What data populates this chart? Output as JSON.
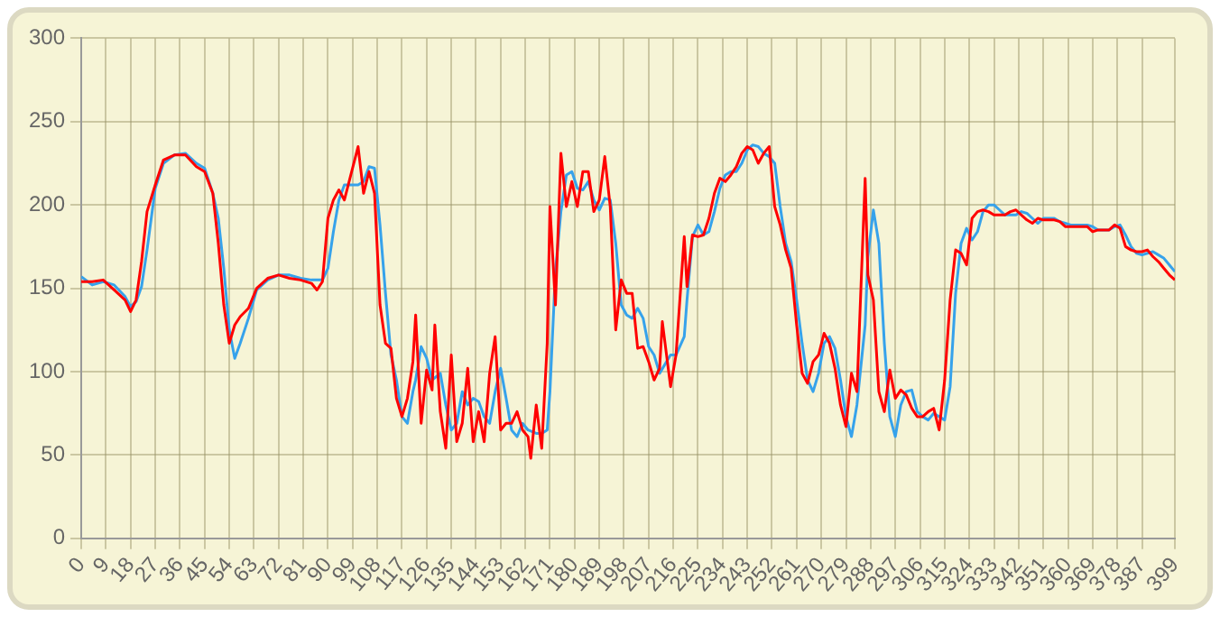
{
  "chart_data": {
    "type": "line",
    "ylim": [
      0,
      300
    ],
    "yticks": [
      0,
      50,
      100,
      150,
      200,
      250,
      300
    ],
    "xlim": [
      0,
      399
    ],
    "xticks": [
      0,
      9,
      18,
      27,
      36,
      45,
      54,
      63,
      72,
      81,
      90,
      99,
      108,
      117,
      126,
      135,
      144,
      153,
      162,
      171,
      180,
      189,
      198,
      207,
      216,
      225,
      234,
      243,
      252,
      261,
      270,
      279,
      288,
      297,
      306,
      315,
      324,
      333,
      342,
      351,
      360,
      369,
      378,
      387,
      399
    ],
    "grid": true,
    "legend": false,
    "marker": "none",
    "line_style": "solid",
    "series": [
      {
        "color": "#ff0000",
        "x": [
          0,
          4,
          8,
          12,
          16,
          18,
          20,
          22,
          24,
          27,
          30,
          34,
          38,
          42,
          45,
          48,
          50,
          52,
          54,
          56,
          58,
          61,
          64,
          68,
          72,
          76,
          80,
          84,
          86,
          88,
          90,
          92,
          94,
          96,
          101,
          103,
          105,
          107,
          109,
          111,
          113,
          115,
          117,
          119,
          121,
          122,
          124,
          126,
          128,
          129,
          131,
          133,
          135,
          137,
          139,
          141,
          143,
          145,
          147,
          149,
          151,
          153,
          155,
          157,
          159,
          161,
          163,
          164,
          166,
          168,
          170,
          171,
          173,
          175,
          177,
          179,
          181,
          183,
          185,
          187,
          189,
          191,
          193,
          195,
          197,
          199,
          201,
          203,
          205,
          207,
          209,
          211,
          212,
          215,
          217,
          220,
          221,
          223,
          225,
          227,
          229,
          231,
          233,
          235,
          237,
          239,
          241,
          243,
          245,
          247,
          249,
          251,
          253,
          255,
          257,
          259,
          261,
          263,
          265,
          267,
          269,
          271,
          273,
          275,
          277,
          279,
          281,
          283,
          286,
          287,
          289,
          291,
          293,
          295,
          297,
          299,
          301,
          303,
          305,
          307,
          309,
          311,
          313,
          315,
          317,
          319,
          321,
          323,
          325,
          327,
          329,
          331,
          333,
          335,
          337,
          339,
          341,
          343,
          345,
          347,
          349,
          351,
          353,
          355,
          357,
          359,
          361,
          363,
          365,
          367,
          369,
          371,
          373,
          375,
          377,
          379,
          381,
          383,
          385,
          387,
          389,
          391,
          393,
          395,
          397,
          399
        ],
        "values": [
          154,
          154,
          155,
          149,
          143,
          136,
          143,
          166,
          196,
          212,
          227,
          230,
          230,
          223,
          220,
          207,
          177,
          140,
          117,
          128,
          133,
          138,
          150,
          156,
          158,
          156,
          155,
          153,
          149,
          154,
          192,
          203,
          209,
          203,
          235,
          207,
          220,
          207,
          140,
          117,
          114,
          84,
          73,
          84,
          106,
          134,
          69,
          101,
          89,
          128,
          76,
          54,
          110,
          58,
          69,
          102,
          58,
          76,
          58,
          99,
          121,
          65,
          69,
          69,
          76,
          65,
          61,
          48,
          80,
          54,
          117,
          199,
          140,
          231,
          199,
          214,
          199,
          220,
          220,
          196,
          203,
          229,
          199,
          125,
          155,
          147,
          147,
          114,
          115,
          106,
          95,
          102,
          130,
          91,
          110,
          181,
          151,
          182,
          181,
          182,
          192,
          207,
          216,
          214,
          218,
          223,
          231,
          235,
          233,
          225,
          231,
          235,
          199,
          188,
          173,
          162,
          128,
          99,
          93,
          106,
          110,
          123,
          117,
          102,
          80,
          67,
          99,
          88,
          216,
          158,
          143,
          88,
          76,
          101,
          84,
          89,
          86,
          78,
          73,
          73,
          76,
          78,
          65,
          95,
          143,
          173,
          171,
          164,
          192,
          196,
          197,
          196,
          194,
          194,
          194,
          196,
          197,
          194,
          191,
          189,
          192,
          191,
          191,
          191,
          190,
          187,
          187,
          187,
          187,
          187,
          184,
          185,
          185,
          185,
          188,
          186,
          175,
          173,
          172,
          172,
          173,
          169,
          166,
          162,
          158,
          155
        ]
      },
      {
        "color": "#36a2eb",
        "x": [
          0,
          4,
          8,
          12,
          16,
          18,
          20,
          22,
          24,
          27,
          30,
          34,
          38,
          42,
          45,
          48,
          50,
          52,
          54,
          56,
          58,
          61,
          64,
          68,
          72,
          76,
          80,
          84,
          88,
          90,
          92,
          94,
          96,
          101,
          103,
          105,
          107,
          109,
          111,
          113,
          115,
          117,
          119,
          121,
          122,
          124,
          126,
          128,
          131,
          133,
          135,
          137,
          139,
          141,
          143,
          145,
          147,
          149,
          151,
          153,
          155,
          157,
          159,
          161,
          163,
          166,
          168,
          170,
          171,
          173,
          175,
          177,
          179,
          181,
          183,
          185,
          187,
          189,
          191,
          193,
          195,
          197,
          199,
          201,
          203,
          205,
          207,
          209,
          211,
          215,
          217,
          220,
          221,
          223,
          225,
          227,
          229,
          231,
          233,
          235,
          237,
          239,
          241,
          243,
          245,
          247,
          249,
          251,
          253,
          255,
          257,
          259,
          261,
          263,
          265,
          267,
          269,
          271,
          273,
          275,
          277,
          279,
          281,
          283,
          286,
          287,
          289,
          291,
          293,
          295,
          297,
          299,
          301,
          303,
          305,
          307,
          309,
          311,
          313,
          315,
          317,
          319,
          321,
          323,
          325,
          327,
          329,
          331,
          333,
          335,
          337,
          339,
          341,
          343,
          345,
          347,
          349,
          351,
          353,
          355,
          357,
          359,
          361,
          363,
          365,
          367,
          369,
          371,
          373,
          375,
          377,
          379,
          381,
          383,
          385,
          387,
          389,
          391,
          393,
          395,
          397,
          399
        ],
        "values": [
          157,
          152,
          154,
          152,
          145,
          139,
          142,
          151,
          173,
          210,
          225,
          230,
          231,
          225,
          222,
          207,
          192,
          162,
          125,
          108,
          117,
          132,
          149,
          155,
          158,
          158,
          156,
          155,
          155,
          162,
          184,
          203,
          212,
          212,
          214,
          223,
          222,
          188,
          147,
          110,
          95,
          73,
          69,
          88,
          95,
          115,
          108,
          95,
          99,
          80,
          65,
          69,
          88,
          80,
          84,
          82,
          73,
          69,
          88,
          102,
          84,
          65,
          61,
          69,
          65,
          63,
          63,
          65,
          88,
          160,
          196,
          218,
          220,
          210,
          209,
          214,
          203,
          197,
          204,
          203,
          177,
          140,
          134,
          132,
          138,
          132,
          115,
          110,
          99,
          110,
          110,
          121,
          143,
          181,
          188,
          182,
          184,
          196,
          210,
          218,
          220,
          220,
          225,
          233,
          236,
          235,
          231,
          229,
          225,
          199,
          177,
          166,
          143,
          117,
          95,
          88,
          99,
          117,
          121,
          114,
          95,
          73,
          61,
          80,
          128,
          169,
          197,
          177,
          117,
          73,
          61,
          80,
          88,
          89,
          76,
          73,
          71,
          75,
          73,
          71,
          91,
          147,
          177,
          186,
          179,
          184,
          196,
          200,
          200,
          197,
          194,
          194,
          194,
          196,
          195,
          192,
          189,
          192,
          192,
          192,
          190,
          189,
          188,
          188,
          188,
          188,
          187,
          185,
          185,
          185,
          187,
          188,
          182,
          175,
          171,
          170,
          171,
          172,
          170,
          168,
          164,
          160
        ]
      }
    ]
  }
}
